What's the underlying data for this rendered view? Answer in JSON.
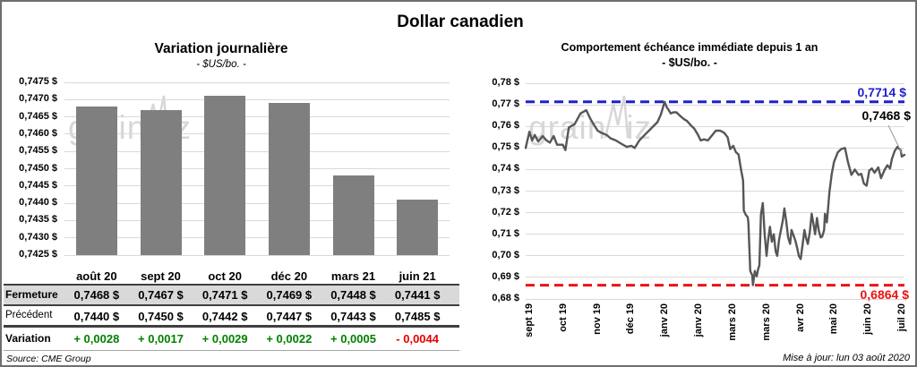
{
  "header": {
    "title": "Dollar canadien"
  },
  "footer": {
    "source": "Source: CME Group",
    "updated": "Mise à jour: lun 03 août 2020"
  },
  "watermark": {
    "part1": "grain",
    "part2": "iz"
  },
  "colors": {
    "bar": "#7f7f7f",
    "line": "#565656",
    "grid": "#d9d9d9",
    "max_blue": "#1f1fcc",
    "min_red": "#ee1111",
    "positive_green": "#008000",
    "negative_red": "#e60000",
    "table_gray": "#d9d9d9"
  },
  "chart_data": [
    {
      "type": "bar",
      "title": "Variation journalière",
      "subtitle": "- $US/bo. -",
      "categories": [
        "août 20",
        "sept 20",
        "oct 20",
        "déc 20",
        "mars 21",
        "juin 21"
      ],
      "values": [
        0.7468,
        0.7467,
        0.7471,
        0.7469,
        0.7448,
        0.7441
      ],
      "ylim": [
        0.7425,
        0.7475
      ],
      "ytick_step": 0.0005,
      "y_tick_labels": [
        "0,7475 $",
        "0,7470 $",
        "0,7465 $",
        "0,7460 $",
        "0,7455 $",
        "0,7450 $",
        "0,7445 $",
        "0,7440 $",
        "0,7435 $",
        "0,7430 $",
        "0,7425 $"
      ],
      "grid": true,
      "bar_color": "#7f7f7f"
    },
    {
      "type": "line",
      "title": "Comportement échéance immédiate depuis 1 an",
      "subtitle": "- $US/bo. -",
      "ylim": [
        0.68,
        0.78
      ],
      "ytick_step": 0.01,
      "y_tick_labels": [
        "0,78 $",
        "0,77 $",
        "0,76 $",
        "0,75 $",
        "0,74 $",
        "0,73 $",
        "0,72 $",
        "0,71 $",
        "0,70 $",
        "0,69 $",
        "0,68 $"
      ],
      "x_tick_labels": [
        "sept 19",
        "oct 19",
        "nov 19",
        "déc 19",
        "janv 20",
        "janv 20",
        "mars 20",
        "mars 20",
        "avr 20",
        "mai 20",
        "juin 20",
        "juil 20"
      ],
      "grid": true,
      "line_color": "#565656",
      "max_line": {
        "value": 0.7714,
        "label": "0,7714 $",
        "color": "#1f1fcc"
      },
      "min_line": {
        "value": 0.6864,
        "label": "0,6864 $",
        "color": "#ee1111"
      },
      "last_point": {
        "value": 0.7468,
        "label": "0,7468 $"
      },
      "points": [
        [
          0.0,
          0.75
        ],
        [
          0.01,
          0.7575
        ],
        [
          0.017,
          0.7535
        ],
        [
          0.024,
          0.756
        ],
        [
          0.033,
          0.753
        ],
        [
          0.045,
          0.7555
        ],
        [
          0.055,
          0.7535
        ],
        [
          0.064,
          0.7525
        ],
        [
          0.074,
          0.7555
        ],
        [
          0.083,
          0.7515
        ],
        [
          0.098,
          0.7515
        ],
        [
          0.105,
          0.749
        ],
        [
          0.114,
          0.7595
        ],
        [
          0.129,
          0.761
        ],
        [
          0.145,
          0.766
        ],
        [
          0.16,
          0.7675
        ],
        [
          0.171,
          0.7635
        ],
        [
          0.181,
          0.7605
        ],
        [
          0.19,
          0.758
        ],
        [
          0.2,
          0.757
        ],
        [
          0.214,
          0.756
        ],
        [
          0.224,
          0.7545
        ],
        [
          0.238,
          0.7535
        ],
        [
          0.252,
          0.752
        ],
        [
          0.267,
          0.7505
        ],
        [
          0.279,
          0.751
        ],
        [
          0.288,
          0.75
        ],
        [
          0.3,
          0.7535
        ],
        [
          0.314,
          0.756
        ],
        [
          0.331,
          0.759
        ],
        [
          0.348,
          0.762
        ],
        [
          0.357,
          0.7655
        ],
        [
          0.367,
          0.7714
        ],
        [
          0.372,
          0.769
        ],
        [
          0.376,
          0.768
        ],
        [
          0.383,
          0.766
        ],
        [
          0.39,
          0.7665
        ],
        [
          0.398,
          0.7665
        ],
        [
          0.407,
          0.765
        ],
        [
          0.417,
          0.7635
        ],
        [
          0.426,
          0.7625
        ],
        [
          0.436,
          0.7605
        ],
        [
          0.445,
          0.759
        ],
        [
          0.455,
          0.756
        ],
        [
          0.462,
          0.7535
        ],
        [
          0.471,
          0.754
        ],
        [
          0.481,
          0.7535
        ],
        [
          0.493,
          0.756
        ],
        [
          0.502,
          0.758
        ],
        [
          0.514,
          0.758
        ],
        [
          0.524,
          0.757
        ],
        [
          0.533,
          0.755
        ],
        [
          0.54,
          0.7495
        ],
        [
          0.548,
          0.751
        ],
        [
          0.555,
          0.748
        ],
        [
          0.562,
          0.747
        ],
        [
          0.569,
          0.7395
        ],
        [
          0.574,
          0.735
        ],
        [
          0.576,
          0.721
        ],
        [
          0.581,
          0.719
        ],
        [
          0.586,
          0.718
        ],
        [
          0.588,
          0.7155
        ],
        [
          0.593,
          0.693
        ],
        [
          0.598,
          0.691
        ],
        [
          0.6,
          0.6864
        ],
        [
          0.605,
          0.693
        ],
        [
          0.61,
          0.6905
        ],
        [
          0.614,
          0.694
        ],
        [
          0.617,
          0.6955
        ],
        [
          0.621,
          0.719
        ],
        [
          0.626,
          0.7245
        ],
        [
          0.631,
          0.71
        ],
        [
          0.636,
          0.7
        ],
        [
          0.64,
          0.707
        ],
        [
          0.645,
          0.7135
        ],
        [
          0.65,
          0.7065
        ],
        [
          0.655,
          0.71
        ],
        [
          0.66,
          0.702
        ],
        [
          0.664,
          0.7
        ],
        [
          0.669,
          0.7075
        ],
        [
          0.674,
          0.712
        ],
        [
          0.679,
          0.7165
        ],
        [
          0.683,
          0.722
        ],
        [
          0.688,
          0.716
        ],
        [
          0.693,
          0.7085
        ],
        [
          0.698,
          0.7055
        ],
        [
          0.702,
          0.712
        ],
        [
          0.707,
          0.7095
        ],
        [
          0.712,
          0.707
        ],
        [
          0.717,
          0.7035
        ],
        [
          0.721,
          0.7
        ],
        [
          0.726,
          0.6985
        ],
        [
          0.731,
          0.705
        ],
        [
          0.736,
          0.712
        ],
        [
          0.74,
          0.7085
        ],
        [
          0.745,
          0.7055
        ],
        [
          0.75,
          0.711
        ],
        [
          0.755,
          0.7195
        ],
        [
          0.76,
          0.7145
        ],
        [
          0.764,
          0.71
        ],
        [
          0.769,
          0.7175
        ],
        [
          0.774,
          0.7115
        ],
        [
          0.779,
          0.7085
        ],
        [
          0.783,
          0.709
        ],
        [
          0.788,
          0.712
        ],
        [
          0.79,
          0.7195
        ],
        [
          0.795,
          0.7155
        ],
        [
          0.798,
          0.7215
        ],
        [
          0.802,
          0.7295
        ],
        [
          0.808,
          0.738
        ],
        [
          0.814,
          0.7435
        ],
        [
          0.824,
          0.748
        ],
        [
          0.833,
          0.7495
        ],
        [
          0.843,
          0.75
        ],
        [
          0.85,
          0.744
        ],
        [
          0.86,
          0.7375
        ],
        [
          0.869,
          0.74
        ],
        [
          0.879,
          0.7375
        ],
        [
          0.886,
          0.738
        ],
        [
          0.893,
          0.7335
        ],
        [
          0.9,
          0.7325
        ],
        [
          0.907,
          0.7395
        ],
        [
          0.914,
          0.7405
        ],
        [
          0.921,
          0.7385
        ],
        [
          0.931,
          0.741
        ],
        [
          0.938,
          0.736
        ],
        [
          0.948,
          0.74
        ],
        [
          0.955,
          0.742
        ],
        [
          0.962,
          0.7405
        ],
        [
          0.967,
          0.745
        ],
        [
          0.974,
          0.7485
        ],
        [
          0.981,
          0.7505
        ],
        [
          0.99,
          0.749
        ],
        [
          0.993,
          0.746
        ],
        [
          1.0,
          0.7468
        ]
      ]
    }
  ],
  "table": {
    "columns": [
      "août 20",
      "sept 20",
      "oct 20",
      "déc 20",
      "mars 21",
      "juin 21"
    ],
    "rows": [
      {
        "label": "Fermeture",
        "values": [
          "0,7468 $",
          "0,7467 $",
          "0,7471 $",
          "0,7469 $",
          "0,7448 $",
          "0,7441 $"
        ]
      },
      {
        "label": "Précédent",
        "values": [
          "0,7440 $",
          "0,7450 $",
          "0,7442 $",
          "0,7447 $",
          "0,7443 $",
          "0,7485 $"
        ]
      },
      {
        "label": "Variation",
        "values": [
          "+ 0,0028",
          "+ 0,0017",
          "+ 0,0029",
          "+ 0,0022",
          "+ 0,0005",
          "- 0,0044"
        ],
        "value_colors": [
          "#008000",
          "#008000",
          "#008000",
          "#008000",
          "#008000",
          "#e60000"
        ]
      }
    ]
  }
}
